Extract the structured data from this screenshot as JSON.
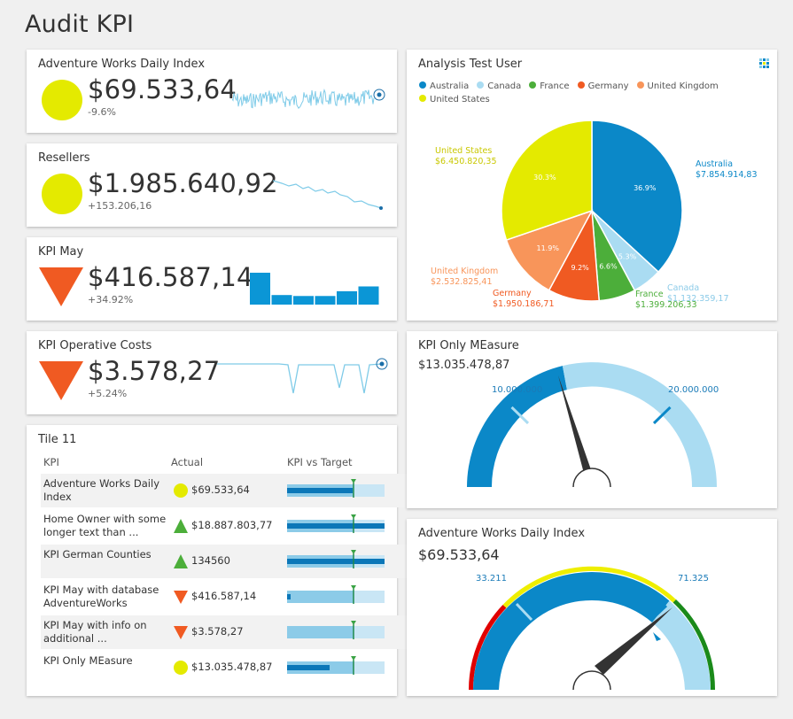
{
  "page": {
    "title": "Audit KPI"
  },
  "colors": {
    "yellow": "#e4ea00",
    "red": "#f05a22",
    "green": "#4cae3a",
    "blue": "#0b88c8",
    "lightblue": "#aadcf2"
  },
  "tiles": {
    "awdi": {
      "title": "Adventure Works Daily Index",
      "value": "$69.533,64",
      "delta": "-9.6%",
      "indicator": "yellow-circle"
    },
    "resellers": {
      "title": "Resellers",
      "value": "$1.985.640,92",
      "delta": "+153.206,16",
      "indicator": "yellow-circle"
    },
    "kpimay": {
      "title": "KPI May",
      "value": "$416.587,14",
      "delta": "+34.92%",
      "indicator": "red-down-triangle"
    },
    "opcost": {
      "title": "KPI Operative Costs",
      "value": "$3.578,27",
      "delta": "+5.24%",
      "indicator": "red-down-triangle"
    }
  },
  "table": {
    "title": "Tile 11",
    "headers": {
      "kpi": "KPI",
      "actual": "Actual",
      "target": "KPI vs Target"
    },
    "rows": [
      {
        "name": "Adventure Works Daily Index",
        "indicator": "yellow-circle",
        "actual": "$69.533,64",
        "progress": 0.67,
        "target": 0.68
      },
      {
        "name": "Home Owner with some longer text than ...",
        "indicator": "green-up-triangle",
        "actual": "$18.887.803,77",
        "progress": 1.0,
        "target": 0.68
      },
      {
        "name": "KPI German Counties",
        "indicator": "green-up-triangle",
        "actual": "134560",
        "progress": 1.0,
        "target": 0.68
      },
      {
        "name": "KPI May with database AdventureWorks",
        "indicator": "red-down-triangle",
        "actual": "$416.587,14",
        "progress": 0.04,
        "target": 0.68
      },
      {
        "name": "KPI May with info on additional ...",
        "indicator": "red-down-triangle",
        "actual": "$3.578,27",
        "progress": 0.0,
        "target": 0.68
      },
      {
        "name": "KPI Only MEasure",
        "indicator": "yellow-circle",
        "actual": "$13.035.478,87",
        "progress": 0.44,
        "target": 0.68
      }
    ]
  },
  "pie": {
    "title": "Analysis Test User",
    "legend": [
      "Australia",
      "Canada",
      "France",
      "Germany",
      "United Kingdom",
      "United States"
    ],
    "icon": "grid-chart-icon"
  },
  "chart_data": [
    {
      "type": "pie",
      "title": "Analysis Test User",
      "slices": [
        {
          "name": "Australia",
          "value": 7854914.83,
          "label": "$7.854.914,83",
          "pct": "36.9%",
          "color": "#0b88c8"
        },
        {
          "name": "Canada",
          "value": 1132359.17,
          "label": "$1.132.359,17",
          "pct": "5.3%",
          "color": "#aadcf2"
        },
        {
          "name": "France",
          "value": 1399206.33,
          "label": "$1.399.206,33",
          "pct": "6.6%",
          "color": "#4cae3a"
        },
        {
          "name": "Germany",
          "value": 1950186.71,
          "label": "$1.950.186,71",
          "pct": "9.2%",
          "color": "#f05a22"
        },
        {
          "name": "United Kingdom",
          "value": 2532825.41,
          "label": "$2.532.825,41",
          "pct": "11.9%",
          "color": "#f8955a"
        },
        {
          "name": "United States",
          "value": 6450820.35,
          "label": "$6.450.820,35",
          "pct": "30.3%",
          "color": "#e4ea00"
        }
      ]
    },
    {
      "type": "gauge",
      "title": "KPI Only MEasure",
      "value_label": "$13.035.478,87",
      "value": 13035478.87,
      "min": 0,
      "max": 30000000,
      "tick_labels": [
        "10.000.000",
        "20.000.000"
      ]
    },
    {
      "type": "gauge",
      "title": "Adventure Works Daily Index",
      "value_label": "$69.533,64",
      "value": 69533.64,
      "tick_labels": [
        "33.211",
        "71.325"
      ]
    },
    {
      "type": "bar",
      "title": "KPI May",
      "values": [
        1.0,
        0.3,
        0.27,
        0.27,
        0.42,
        0.57
      ]
    }
  ]
}
